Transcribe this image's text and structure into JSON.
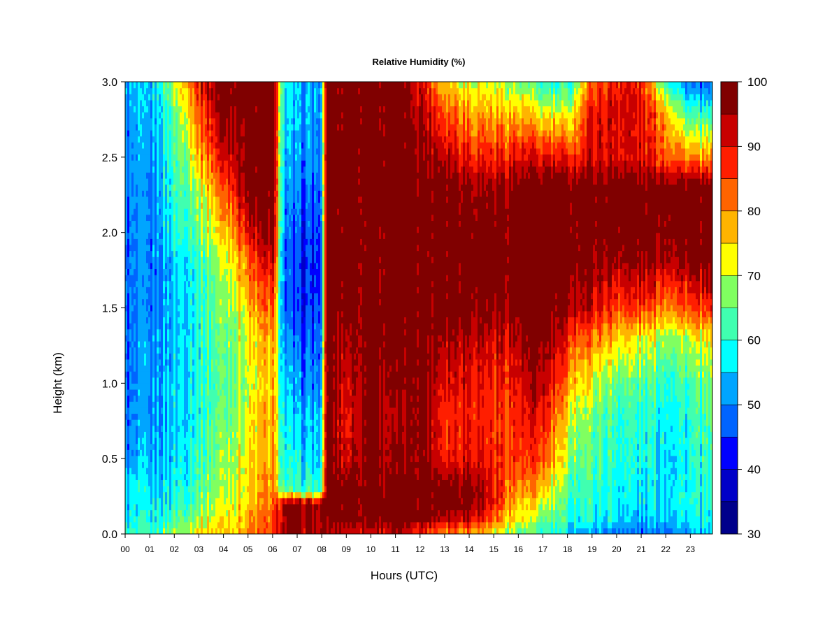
{
  "chart_data": {
    "type": "heatmap",
    "title": "Relative Humidity (%)",
    "xlabel": "Hours (UTC)",
    "ylabel": "Height (km)",
    "xlim": [
      0,
      23.9
    ],
    "ylim": [
      0,
      3.0
    ],
    "x_ticks": [
      0,
      1,
      2,
      3,
      4,
      5,
      6,
      7,
      8,
      9,
      10,
      11,
      12,
      13,
      14,
      15,
      16,
      17,
      18,
      19,
      20,
      21,
      22,
      23
    ],
    "x_tick_labels": [
      "00",
      "01",
      "02",
      "03",
      "04",
      "05",
      "06",
      "07",
      "08",
      "09",
      "10",
      "11",
      "12",
      "13",
      "14",
      "15",
      "16",
      "17",
      "18",
      "19",
      "20",
      "21",
      "22",
      "23"
    ],
    "y_ticks": [
      0.0,
      0.5,
      1.0,
      1.5,
      2.0,
      2.5,
      3.0
    ],
    "y_tick_labels": [
      "0.0",
      "0.5",
      "1.0",
      "1.5",
      "2.0",
      "2.5",
      "3.0"
    ],
    "colorbar": {
      "levels": [
        30,
        35,
        40,
        45,
        50,
        55,
        60,
        65,
        70,
        75,
        80,
        85,
        90,
        95,
        100
      ],
      "tick_values": [
        30,
        40,
        50,
        60,
        70,
        80,
        90,
        100
      ],
      "tick_labels": [
        "30",
        "40",
        "50",
        "60",
        "70",
        "80",
        "90",
        "100"
      ],
      "colors": [
        "#00008b",
        "#0000c8",
        "#0000ff",
        "#0064ff",
        "#00a5ff",
        "#00ffff",
        "#40ffb0",
        "#80ff60",
        "#ffff00",
        "#ffb400",
        "#ff6400",
        "#ff1e00",
        "#c80000",
        "#800000"
      ]
    },
    "hours": [
      0.0,
      1.0,
      2.0,
      3.0,
      4.0,
      5.0,
      6.0,
      6.5,
      7.0,
      8.0,
      8.2,
      9.0,
      10.0,
      11.0,
      12.0,
      13.0,
      14.0,
      15.0,
      16.0,
      17.0,
      18.0,
      19.0,
      20.0,
      21.0,
      22.0,
      23.0,
      23.9
    ],
    "heights_km": [
      0.0,
      0.1,
      0.2,
      0.3,
      0.5,
      0.8,
      1.0,
      1.3,
      1.5,
      1.8,
      2.0,
      2.3,
      2.5,
      2.8,
      3.0
    ],
    "rh_percent": [
      [
        60,
        56,
        55,
        55,
        50,
        48,
        48,
        48,
        48,
        48,
        48,
        50,
        50,
        50,
        52
      ],
      [
        60,
        58,
        56,
        55,
        52,
        50,
        50,
        50,
        48,
        48,
        48,
        48,
        50,
        52,
        52
      ],
      [
        70,
        64,
        60,
        58,
        56,
        55,
        55,
        55,
        55,
        55,
        60,
        62,
        62,
        65,
        70
      ],
      [
        74,
        70,
        66,
        64,
        62,
        60,
        60,
        60,
        60,
        62,
        66,
        70,
        78,
        85,
        90
      ],
      [
        76,
        74,
        72,
        70,
        68,
        66,
        65,
        66,
        68,
        70,
        76,
        85,
        92,
        98,
        100
      ],
      [
        80,
        78,
        76,
        75,
        74,
        72,
        70,
        72,
        76,
        82,
        90,
        98,
        100,
        100,
        100
      ],
      [
        85,
        84,
        82,
        80,
        78,
        78,
        76,
        78,
        84,
        92,
        98,
        100,
        100,
        100,
        100
      ],
      [
        95,
        96,
        96,
        62,
        58,
        56,
        54,
        50,
        48,
        46,
        48,
        50,
        52,
        55,
        56
      ],
      [
        96,
        98,
        98,
        60,
        56,
        52,
        50,
        46,
        42,
        42,
        44,
        48,
        50,
        52,
        52
      ],
      [
        92,
        95,
        95,
        60,
        56,
        54,
        50,
        48,
        46,
        44,
        46,
        48,
        50,
        52,
        52
      ],
      [
        96,
        98,
        100,
        100,
        100,
        100,
        100,
        100,
        100,
        100,
        100,
        100,
        100,
        100,
        100
      ],
      [
        92,
        98,
        100,
        100,
        92,
        90,
        92,
        95,
        98,
        100,
        100,
        100,
        100,
        100,
        100
      ],
      [
        92,
        100,
        100,
        100,
        100,
        100,
        100,
        100,
        100,
        100,
        100,
        100,
        100,
        100,
        100
      ],
      [
        92,
        100,
        100,
        100,
        94,
        92,
        95,
        98,
        100,
        100,
        100,
        100,
        100,
        100,
        100
      ],
      [
        88,
        100,
        100,
        100,
        100,
        100,
        100,
        100,
        100,
        100,
        100,
        100,
        98,
        96,
        92
      ],
      [
        82,
        94,
        100,
        100,
        90,
        88,
        92,
        96,
        100,
        100,
        100,
        100,
        95,
        85,
        78
      ],
      [
        80,
        94,
        100,
        100,
        92,
        90,
        92,
        96,
        100,
        100,
        100,
        98,
        90,
        80,
        72
      ],
      [
        72,
        84,
        90,
        90,
        88,
        86,
        88,
        92,
        96,
        100,
        100,
        96,
        88,
        78,
        70
      ],
      [
        66,
        72,
        76,
        80,
        86,
        88,
        90,
        94,
        98,
        100,
        100,
        98,
        90,
        76,
        66
      ],
      [
        60,
        66,
        70,
        76,
        84,
        90,
        94,
        98,
        100,
        100,
        100,
        100,
        90,
        72,
        60
      ],
      [
        56,
        60,
        62,
        64,
        68,
        74,
        80,
        88,
        96,
        100,
        100,
        100,
        88,
        70,
        58
      ],
      [
        52,
        58,
        60,
        62,
        64,
        66,
        72,
        82,
        92,
        98,
        100,
        100,
        92,
        90,
        84
      ],
      [
        50,
        56,
        58,
        58,
        60,
        62,
        66,
        76,
        86,
        96,
        100,
        100,
        92,
        92,
        90
      ],
      [
        48,
        52,
        56,
        56,
        58,
        60,
        64,
        72,
        86,
        96,
        100,
        100,
        90,
        90,
        88
      ],
      [
        50,
        56,
        58,
        58,
        58,
        60,
        62,
        70,
        82,
        96,
        100,
        100,
        86,
        80,
        62
      ],
      [
        52,
        56,
        58,
        58,
        58,
        60,
        62,
        70,
        84,
        96,
        100,
        100,
        80,
        60,
        48
      ],
      [
        54,
        56,
        58,
        58,
        60,
        62,
        64,
        72,
        86,
        98,
        100,
        98,
        78,
        58,
        46
      ]
    ]
  }
}
